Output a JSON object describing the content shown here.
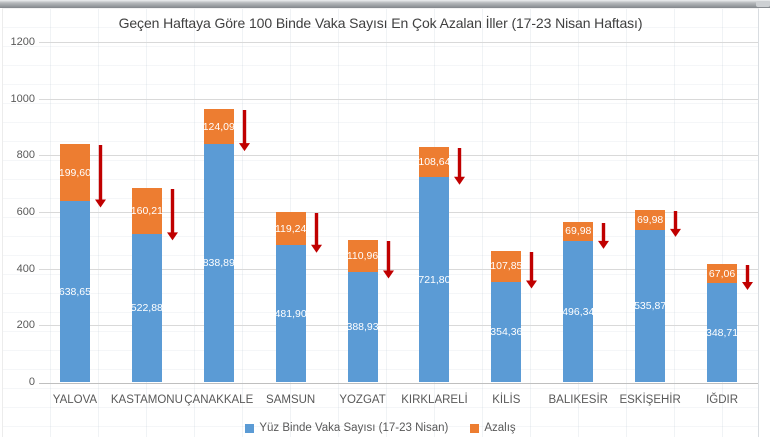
{
  "window": {
    "top_bar_present": true
  },
  "chart_data": {
    "type": "bar",
    "stacked": true,
    "title": "Geçen Haftaya Göre 100 Binde Vaka Sayısı En Çok Azalan İller (17-23 Nisan Haftası)",
    "categories": [
      "YALOVA",
      "KASTAMONU",
      "ÇANAKKALE",
      "SAMSUN",
      "YOZGAT",
      "KIRKLARELİ",
      "KİLİS",
      "BALIKESİR",
      "ESKİŞEHİR",
      "IĞDIR"
    ],
    "series": [
      {
        "name": "Yüz Binde Vaka Sayısı (17-23 Nisan)",
        "color": "#5B9BD5",
        "values": [
          638.65,
          522.88,
          838.89,
          481.9,
          388.93,
          721.8,
          354.36,
          496.34,
          535.87,
          348.71
        ],
        "labels": [
          "638,65",
          "522,88",
          "838,89",
          "481,90",
          "388,93",
          "721,80",
          "354,36",
          "496,34",
          "535,87",
          "348,71"
        ]
      },
      {
        "name": "Azalış",
        "color": "#ED7D31",
        "values": [
          199.6,
          160.21,
          124.09,
          119.24,
          110.96,
          108.64,
          107.85,
          69.98,
          69.98,
          67.06
        ],
        "labels": [
          "199,60",
          "160,21",
          "124,09",
          "119,24",
          "110,96",
          "108,64",
          "107,85",
          "69,98",
          "69,98",
          "67,06"
        ]
      }
    ],
    "ylim": [
      0,
      1200
    ],
    "yticks": [
      "0",
      "200",
      "400",
      "600",
      "800",
      "1000",
      "1200"
    ],
    "grid": true,
    "legend_position": "bottom",
    "decrease_arrow_color": "#C00000",
    "bar_label_color": "#FFFFFF",
    "text_color": "#595959",
    "title_color": "#404040",
    "gridline_color": "#D9D9D9"
  }
}
